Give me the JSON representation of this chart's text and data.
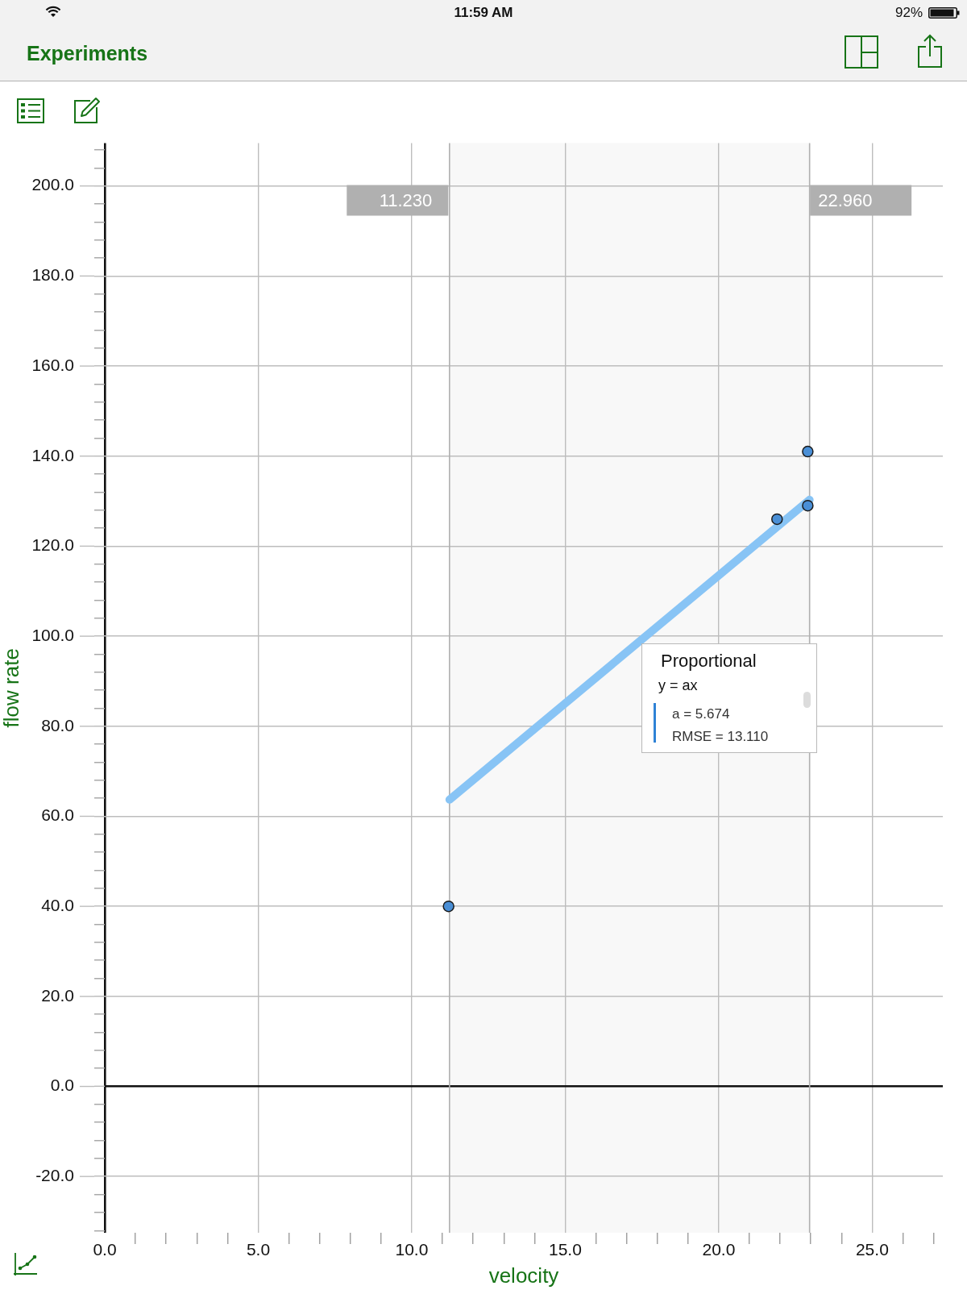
{
  "chart_data": {
    "type": "scatter",
    "title": "Experiments",
    "xlabel": "velocity",
    "ylabel": "flow rate",
    "xlim": [
      0,
      27.3
    ],
    "ylim": [
      -32.5,
      209.5
    ],
    "xticks": [
      {
        "value": 0,
        "label": "0.0"
      },
      {
        "value": 1,
        "label": null
      },
      {
        "value": 2,
        "label": null
      },
      {
        "value": 3,
        "label": null
      },
      {
        "value": 4,
        "label": null
      },
      {
        "value": 5,
        "label": "5.0"
      },
      {
        "value": 6,
        "label": null
      },
      {
        "value": 7,
        "label": null
      },
      {
        "value": 8,
        "label": null
      },
      {
        "value": 9,
        "label": null
      },
      {
        "value": 10,
        "label": "10.0"
      },
      {
        "value": 11,
        "label": null
      },
      {
        "value": 12,
        "label": null
      },
      {
        "value": 13,
        "label": null
      },
      {
        "value": 14,
        "label": null
      },
      {
        "value": 15,
        "label": "15.0"
      },
      {
        "value": 16,
        "label": null
      },
      {
        "value": 17,
        "label": null
      },
      {
        "value": 18,
        "label": null
      },
      {
        "value": 19,
        "label": null
      },
      {
        "value": 20,
        "label": "20.0"
      },
      {
        "value": 21,
        "label": null
      },
      {
        "value": 22,
        "label": null
      },
      {
        "value": 23,
        "label": null
      },
      {
        "value": 24,
        "label": null
      },
      {
        "value": 25,
        "label": "25.0"
      },
      {
        "value": 26,
        "label": null
      },
      {
        "value": 27,
        "label": null
      }
    ],
    "yticks": [
      {
        "value": -32,
        "label": null
      },
      {
        "value": -28,
        "label": null
      },
      {
        "value": -24,
        "label": null
      },
      {
        "value": -20,
        "label": "-20.0"
      },
      {
        "value": -16,
        "label": null
      },
      {
        "value": -12,
        "label": null
      },
      {
        "value": -8,
        "label": null
      },
      {
        "value": -4,
        "label": null
      },
      {
        "value": 0,
        "label": "0.0"
      },
      {
        "value": 4,
        "label": null
      },
      {
        "value": 8,
        "label": null
      },
      {
        "value": 12,
        "label": null
      },
      {
        "value": 16,
        "label": null
      },
      {
        "value": 20,
        "label": "20.0"
      },
      {
        "value": 24,
        "label": null
      },
      {
        "value": 28,
        "label": null
      },
      {
        "value": 32,
        "label": null
      },
      {
        "value": 36,
        "label": null
      },
      {
        "value": 40,
        "label": "40.0"
      },
      {
        "value": 44,
        "label": null
      },
      {
        "value": 48,
        "label": null
      },
      {
        "value": 52,
        "label": null
      },
      {
        "value": 56,
        "label": null
      },
      {
        "value": 60,
        "label": "60.0"
      },
      {
        "value": 64,
        "label": null
      },
      {
        "value": 68,
        "label": null
      },
      {
        "value": 72,
        "label": null
      },
      {
        "value": 76,
        "label": null
      },
      {
        "value": 80,
        "label": "80.0"
      },
      {
        "value": 84,
        "label": null
      },
      {
        "value": 88,
        "label": null
      },
      {
        "value": 92,
        "label": null
      },
      {
        "value": 96,
        "label": null
      },
      {
        "value": 100,
        "label": "100.0"
      },
      {
        "value": 104,
        "label": null
      },
      {
        "value": 108,
        "label": null
      },
      {
        "value": 112,
        "label": null
      },
      {
        "value": 116,
        "label": null
      },
      {
        "value": 120,
        "label": "120.0"
      },
      {
        "value": 124,
        "label": null
      },
      {
        "value": 128,
        "label": null
      },
      {
        "value": 132,
        "label": null
      },
      {
        "value": 136,
        "label": null
      },
      {
        "value": 140,
        "label": "140.0"
      },
      {
        "value": 144,
        "label": null
      },
      {
        "value": 148,
        "label": null
      },
      {
        "value": 152,
        "label": null
      },
      {
        "value": 156,
        "label": null
      },
      {
        "value": 160,
        "label": "160.0"
      },
      {
        "value": 164,
        "label": null
      },
      {
        "value": 168,
        "label": null
      },
      {
        "value": 172,
        "label": null
      },
      {
        "value": 176,
        "label": null
      },
      {
        "value": 180,
        "label": "180.0"
      },
      {
        "value": 184,
        "label": null
      },
      {
        "value": 188,
        "label": null
      },
      {
        "value": 192,
        "label": null
      },
      {
        "value": 196,
        "label": null
      },
      {
        "value": 200,
        "label": "200.0"
      },
      {
        "value": 204,
        "label": null
      },
      {
        "value": 208,
        "label": null
      }
    ],
    "grid": true,
    "legend": false,
    "marker": "circle",
    "series": [
      {
        "type": "scatter",
        "color": "#4a8fd6",
        "x": [
          11.2,
          21.9,
          22.9,
          22.9
        ],
        "values": [
          40,
          126,
          141,
          129
        ]
      },
      {
        "type": "line",
        "color": "#88c4f5",
        "x": [
          11.23,
          22.96
        ],
        "values": [
          63.7,
          130.3
        ],
        "marker": "none"
      }
    ],
    "bands": [
      {
        "axis": "x",
        "from": 11.23,
        "to": 22.96,
        "color": "#f8f8f8"
      }
    ],
    "ref_lines": [
      {
        "axis": "x",
        "value": 11.23,
        "label": "11.230",
        "color": "#b0b0b0"
      },
      {
        "axis": "x",
        "value": 22.96,
        "label": "22.960",
        "color": "#b0b0b0"
      }
    ],
    "annotations": [
      "11:59 AM",
      "92%",
      "Proportional",
      "y = ax",
      "a = 5.674",
      "RMSE = 13.110"
    ]
  }
}
